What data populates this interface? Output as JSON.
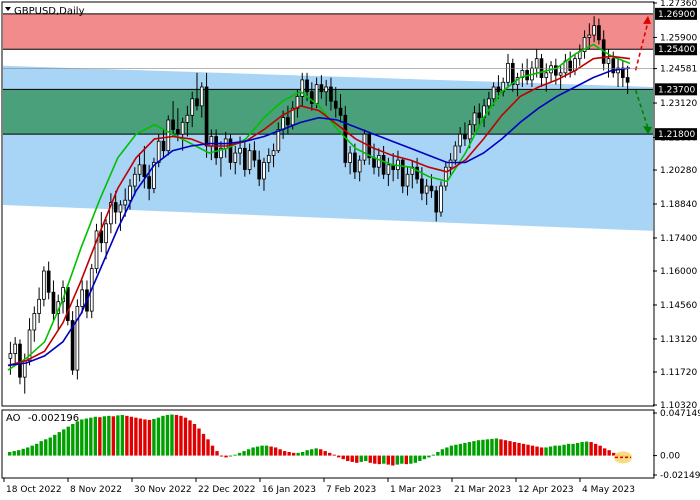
{
  "window": {
    "title": "GBPUSD,Daily",
    "icon": "chevron-down-icon"
  },
  "colors": {
    "resistance_zone": "#f28b8b",
    "support_zone_green": "#3e9a6e",
    "channel_blue": "#a8d4f5",
    "candle_up": "#000000",
    "candle_down": "#000000",
    "ma_green": "#00c000",
    "ma_red": "#c00000",
    "ma_blue": "#0000c0",
    "ao_up": "#00a000",
    "ao_down": "#e00000",
    "arrow_up": "#e00000",
    "arrow_down": "#008000",
    "level_label_bg": "#000000",
    "level_label_text": "#ffffff"
  },
  "price_axis": {
    "ticks": [
      "1.27360",
      "1.25900",
      "1.24581",
      "1.23120",
      "1.21660",
      "1.20280",
      "1.18840",
      "1.17400",
      "1.16000",
      "1.14560",
      "1.13120",
      "1.11720",
      "1.10320"
    ],
    "highlight_levels": [
      "1.26900",
      "1.25400",
      "1.23700",
      "1.21800"
    ]
  },
  "time_axis": {
    "labels": [
      "18 Oct 2022",
      "8 Nov 2022",
      "30 Nov 2022",
      "22 Dec 2022",
      "16 Jan 2023",
      "7 Feb 2023",
      "1 Mar 2023",
      "21 Mar 2023",
      "12 Apr 2023",
      "4 May 2023"
    ]
  },
  "ao_panel": {
    "label_prefix": "AO",
    "label_value": "-0.002196",
    "ticks": [
      "0.047149",
      "0.00",
      "-0.021497"
    ]
  },
  "chart_data": {
    "type": "candlestick",
    "symbol": "GBPUSD",
    "timeframe": "Daily",
    "ylim": [
      1.1032,
      1.2736
    ],
    "zones": {
      "resistance": [
        1.254,
        1.269
      ],
      "support": [
        1.218,
        1.237
      ]
    },
    "candles": [
      [
        1.123,
        1.13,
        1.116,
        1.125
      ],
      [
        1.125,
        1.132,
        1.12,
        1.129
      ],
      [
        1.129,
        1.131,
        1.112,
        1.115
      ],
      [
        1.115,
        1.125,
        1.108,
        1.122
      ],
      [
        1.122,
        1.14,
        1.12,
        1.135
      ],
      [
        1.135,
        1.145,
        1.13,
        1.142
      ],
      [
        1.142,
        1.153,
        1.138,
        1.148
      ],
      [
        1.148,
        1.162,
        1.145,
        1.16
      ],
      [
        1.16,
        1.164,
        1.148,
        1.151
      ],
      [
        1.151,
        1.156,
        1.139,
        1.142
      ],
      [
        1.142,
        1.15,
        1.135,
        1.147
      ],
      [
        1.147,
        1.156,
        1.142,
        1.153
      ],
      [
        1.153,
        1.154,
        1.137,
        1.139
      ],
      [
        1.139,
        1.143,
        1.116,
        1.118
      ],
      [
        1.118,
        1.148,
        1.114,
        1.145
      ],
      [
        1.145,
        1.156,
        1.142,
        1.152
      ],
      [
        1.152,
        1.156,
        1.14,
        1.143
      ],
      [
        1.143,
        1.163,
        1.14,
        1.161
      ],
      [
        1.161,
        1.18,
        1.159,
        1.177
      ],
      [
        1.177,
        1.185,
        1.168,
        1.172
      ],
      [
        1.172,
        1.182,
        1.165,
        1.18
      ],
      [
        1.18,
        1.193,
        1.176,
        1.189
      ],
      [
        1.189,
        1.194,
        1.18,
        1.185
      ],
      [
        1.185,
        1.19,
        1.177,
        1.188
      ],
      [
        1.188,
        1.195,
        1.183,
        1.19
      ],
      [
        1.19,
        1.199,
        1.186,
        1.196
      ],
      [
        1.196,
        1.204,
        1.192,
        1.201
      ],
      [
        1.201,
        1.21,
        1.198,
        1.205
      ],
      [
        1.205,
        1.213,
        1.195,
        1.2
      ],
      [
        1.2,
        1.205,
        1.19,
        1.195
      ],
      [
        1.195,
        1.208,
        1.193,
        1.206
      ],
      [
        1.206,
        1.218,
        1.204,
        1.215
      ],
      [
        1.215,
        1.22,
        1.208,
        1.211
      ],
      [
        1.211,
        1.226,
        1.209,
        1.224
      ],
      [
        1.224,
        1.232,
        1.217,
        1.22
      ],
      [
        1.22,
        1.229,
        1.215,
        1.218
      ],
      [
        1.218,
        1.225,
        1.211,
        1.223
      ],
      [
        1.223,
        1.23,
        1.217,
        1.226
      ],
      [
        1.226,
        1.236,
        1.221,
        1.233
      ],
      [
        1.233,
        1.244,
        1.228,
        1.23
      ],
      [
        1.23,
        1.24,
        1.225,
        1.238
      ],
      [
        1.238,
        1.244,
        1.208,
        1.213
      ],
      [
        1.213,
        1.22,
        1.207,
        1.217
      ],
      [
        1.217,
        1.22,
        1.205,
        1.208
      ],
      [
        1.208,
        1.215,
        1.2,
        1.212
      ],
      [
        1.212,
        1.219,
        1.208,
        1.216
      ],
      [
        1.216,
        1.218,
        1.203,
        1.206
      ],
      [
        1.206,
        1.213,
        1.201,
        1.21
      ],
      [
        1.21,
        1.217,
        1.205,
        1.212
      ],
      [
        1.212,
        1.216,
        1.2,
        1.203
      ],
      [
        1.203,
        1.214,
        1.201,
        1.211
      ],
      [
        1.211,
        1.215,
        1.204,
        1.207
      ],
      [
        1.207,
        1.211,
        1.196,
        1.199
      ],
      [
        1.199,
        1.208,
        1.194,
        1.206
      ],
      [
        1.206,
        1.212,
        1.202,
        1.209
      ],
      [
        1.209,
        1.214,
        1.204,
        1.211
      ],
      [
        1.211,
        1.223,
        1.21,
        1.22
      ],
      [
        1.22,
        1.228,
        1.216,
        1.225
      ],
      [
        1.225,
        1.23,
        1.218,
        1.222
      ],
      [
        1.222,
        1.232,
        1.22,
        1.229
      ],
      [
        1.229,
        1.237,
        1.225,
        1.234
      ],
      [
        1.234,
        1.244,
        1.23,
        1.241
      ],
      [
        1.241,
        1.244,
        1.232,
        1.236
      ],
      [
        1.236,
        1.24,
        1.228,
        1.231
      ],
      [
        1.231,
        1.242,
        1.229,
        1.239
      ],
      [
        1.239,
        1.243,
        1.233,
        1.236
      ],
      [
        1.236,
        1.241,
        1.23,
        1.238
      ],
      [
        1.238,
        1.242,
        1.228,
        1.232
      ],
      [
        1.232,
        1.238,
        1.225,
        1.229
      ],
      [
        1.229,
        1.235,
        1.223,
        1.226
      ],
      [
        1.226,
        1.23,
        1.204,
        1.206
      ],
      [
        1.206,
        1.213,
        1.201,
        1.21
      ],
      [
        1.21,
        1.214,
        1.199,
        1.202
      ],
      [
        1.202,
        1.209,
        1.198,
        1.207
      ],
      [
        1.207,
        1.22,
        1.205,
        1.218
      ],
      [
        1.218,
        1.219,
        1.205,
        1.208
      ],
      [
        1.208,
        1.214,
        1.201,
        1.204
      ],
      [
        1.204,
        1.212,
        1.2,
        1.209
      ],
      [
        1.209,
        1.213,
        1.199,
        1.201
      ],
      [
        1.201,
        1.208,
        1.196,
        1.205
      ],
      [
        1.205,
        1.21,
        1.198,
        1.203
      ],
      [
        1.203,
        1.211,
        1.199,
        1.207
      ],
      [
        1.207,
        1.208,
        1.193,
        1.196
      ],
      [
        1.196,
        1.204,
        1.192,
        1.201
      ],
      [
        1.201,
        1.207,
        1.195,
        1.204
      ],
      [
        1.204,
        1.208,
        1.197,
        1.199
      ],
      [
        1.199,
        1.204,
        1.19,
        1.193
      ],
      [
        1.193,
        1.199,
        1.188,
        1.196
      ],
      [
        1.196,
        1.201,
        1.191,
        1.194
      ],
      [
        1.194,
        1.196,
        1.181,
        1.185
      ],
      [
        1.185,
        1.198,
        1.183,
        1.196
      ],
      [
        1.196,
        1.206,
        1.194,
        1.204
      ],
      [
        1.204,
        1.21,
        1.2,
        1.207
      ],
      [
        1.207,
        1.215,
        1.205,
        1.213
      ],
      [
        1.213,
        1.221,
        1.21,
        1.218
      ],
      [
        1.218,
        1.223,
        1.213,
        1.216
      ],
      [
        1.216,
        1.224,
        1.212,
        1.222
      ],
      [
        1.222,
        1.23,
        1.219,
        1.227
      ],
      [
        1.227,
        1.231,
        1.222,
        1.225
      ],
      [
        1.225,
        1.233,
        1.221,
        1.23
      ],
      [
        1.23,
        1.236,
        1.226,
        1.233
      ],
      [
        1.233,
        1.24,
        1.23,
        1.238
      ],
      [
        1.238,
        1.243,
        1.233,
        1.236
      ],
      [
        1.236,
        1.242,
        1.234,
        1.24
      ],
      [
        1.24,
        1.252,
        1.238,
        1.248
      ],
      [
        1.248,
        1.25,
        1.236,
        1.239
      ],
      [
        1.239,
        1.244,
        1.234,
        1.242
      ],
      [
        1.242,
        1.248,
        1.238,
        1.245
      ],
      [
        1.245,
        1.25,
        1.239,
        1.241
      ],
      [
        1.241,
        1.249,
        1.238,
        1.246
      ],
      [
        1.246,
        1.254,
        1.242,
        1.25
      ],
      [
        1.25,
        1.252,
        1.238,
        1.242
      ],
      [
        1.242,
        1.248,
        1.236,
        1.244
      ],
      [
        1.244,
        1.249,
        1.24,
        1.247
      ],
      [
        1.247,
        1.25,
        1.239,
        1.243
      ],
      [
        1.243,
        1.247,
        1.237,
        1.244
      ],
      [
        1.244,
        1.252,
        1.242,
        1.249
      ],
      [
        1.249,
        1.253,
        1.242,
        1.245
      ],
      [
        1.245,
        1.252,
        1.243,
        1.25
      ],
      [
        1.25,
        1.256,
        1.247,
        1.253
      ],
      [
        1.253,
        1.262,
        1.25,
        1.259
      ],
      [
        1.259,
        1.265,
        1.254,
        1.26
      ],
      [
        1.26,
        1.268,
        1.257,
        1.264
      ],
      [
        1.264,
        1.267,
        1.256,
        1.258
      ],
      [
        1.258,
        1.262,
        1.245,
        1.248
      ],
      [
        1.248,
        1.254,
        1.242,
        1.25
      ],
      [
        1.25,
        1.253,
        1.242,
        1.244
      ],
      [
        1.244,
        1.25,
        1.238,
        1.246
      ],
      [
        1.246,
        1.249,
        1.238,
        1.242
      ],
      [
        1.242,
        1.247,
        1.235,
        1.24
      ]
    ],
    "moving_averages": [
      {
        "color": "green",
        "values": [
          1.118,
          1.123,
          1.13,
          1.148,
          1.17,
          1.19,
          1.208,
          1.218,
          1.222,
          1.218,
          1.214,
          1.21,
          1.212,
          1.216,
          1.225,
          1.232,
          1.236,
          1.23,
          1.22,
          1.212,
          1.208,
          1.205,
          1.204,
          1.2,
          1.198,
          1.21,
          1.225,
          1.236,
          1.242,
          1.244,
          1.246,
          1.252,
          1.256,
          1.251,
          1.248
        ]
      },
      {
        "color": "red",
        "values": [
          1.12,
          1.122,
          1.126,
          1.138,
          1.156,
          1.176,
          1.195,
          1.208,
          1.216,
          1.217,
          1.216,
          1.213,
          1.213,
          1.215,
          1.22,
          1.226,
          1.23,
          1.228,
          1.222,
          1.216,
          1.212,
          1.209,
          1.207,
          1.204,
          1.202,
          1.207,
          1.216,
          1.226,
          1.234,
          1.238,
          1.241,
          1.245,
          1.25,
          1.251,
          1.25
        ]
      },
      {
        "color": "blue",
        "values": [
          1.12,
          1.121,
          1.124,
          1.13,
          1.142,
          1.16,
          1.178,
          1.194,
          1.205,
          1.211,
          1.213,
          1.214,
          1.214,
          1.215,
          1.217,
          1.22,
          1.223,
          1.225,
          1.224,
          1.221,
          1.218,
          1.215,
          1.212,
          1.209,
          1.206,
          1.206,
          1.21,
          1.216,
          1.223,
          1.229,
          1.234,
          1.238,
          1.242,
          1.245,
          1.246
        ]
      }
    ],
    "channel": {
      "upper": [
        [
          0,
          1.247
        ],
        [
          1,
          1.238
        ]
      ],
      "lower": [
        [
          0,
          1.188
        ],
        [
          1,
          1.177
        ]
      ]
    },
    "ao_ylim": [
      -0.021497,
      0.047149
    ],
    "ao_values": [
      0.004,
      0.005,
      0.006,
      0.0075,
      0.009,
      0.011,
      0.013,
      0.016,
      0.018,
      0.02,
      0.023,
      0.026,
      0.029,
      0.032,
      0.035,
      0.038,
      0.04,
      0.041,
      0.042,
      0.043,
      0.0425,
      0.0435,
      0.044,
      0.0435,
      0.0445,
      0.045,
      0.044,
      0.043,
      0.042,
      0.041,
      0.04,
      0.0395,
      0.0405,
      0.042,
      0.044,
      0.045,
      0.0455,
      0.045,
      0.044,
      0.042,
      0.039,
      0.035,
      0.03,
      0.024,
      0.018,
      0.011,
      0.005,
      -0.001,
      -0.002,
      -0.001,
      0.001,
      0.003,
      0.005,
      0.007,
      0.009,
      0.01,
      0.011,
      0.011,
      0.01,
      0.009,
      0.007,
      0.005,
      0.004,
      0.003,
      0.003,
      0.004,
      0.006,
      0.007,
      0.008,
      0.007,
      0.005,
      0.003,
      0.001,
      -0.002,
      -0.004,
      -0.006,
      -0.007,
      -0.008,
      -0.007,
      -0.006,
      -0.008,
      -0.009,
      -0.0095,
      -0.009,
      -0.01,
      -0.011,
      -0.01,
      -0.009,
      -0.0095,
      -0.009,
      -0.008,
      -0.006,
      -0.004,
      -0.002,
      0.001,
      0.004,
      0.007,
      0.009,
      0.011,
      0.012,
      0.013,
      0.014,
      0.015,
      0.016,
      0.017,
      0.0175,
      0.018,
      0.0185,
      0.019,
      0.018,
      0.017,
      0.016,
      0.015,
      0.014,
      0.013,
      0.012,
      0.011,
      0.01,
      0.009,
      0.009,
      0.01,
      0.011,
      0.011,
      0.012,
      0.013,
      0.013,
      0.014,
      0.015,
      0.0155,
      0.015,
      0.013,
      0.011,
      0.008,
      0.006,
      0.003,
      0.001,
      -0.001,
      -0.002
    ]
  }
}
